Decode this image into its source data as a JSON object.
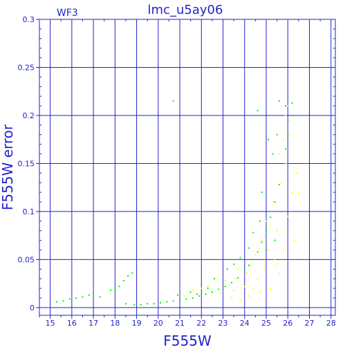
{
  "chart_data": {
    "type": "scatter",
    "title": "lmc_u5ay06",
    "corner_label": "WF3",
    "xlabel": "F555W",
    "ylabel": "F555W error",
    "xlim": [
      14.5,
      28.2
    ],
    "ylim": [
      -0.008,
      0.3
    ],
    "x_ticks": [
      15,
      16,
      17,
      18,
      19,
      20,
      21,
      22,
      23,
      24,
      25,
      26,
      27,
      28
    ],
    "x_tick_labels": [
      "15",
      "16",
      "17",
      "18",
      "19",
      "20",
      "21",
      "22",
      "23",
      "24",
      "25",
      "26",
      "27",
      "28"
    ],
    "y_ticks": [
      0,
      0.05,
      0.1,
      0.15,
      0.2,
      0.25,
      0.3
    ],
    "y_tick_labels": [
      "0",
      "0.05",
      "0.1",
      "0.15",
      "0.2",
      "0.25",
      "0.3"
    ],
    "grid": true,
    "series": [
      {
        "color": "#ffff00",
        "points": [
          [
            21.2,
            0.012
          ],
          [
            21.6,
            0.018
          ],
          [
            22.0,
            0.02
          ],
          [
            22.3,
            0.022
          ],
          [
            22.6,
            0.03
          ],
          [
            22.8,
            0.034
          ],
          [
            23.1,
            0.028
          ],
          [
            23.3,
            0.024
          ],
          [
            23.5,
            0.018
          ],
          [
            23.6,
            0.03
          ],
          [
            23.8,
            0.008
          ],
          [
            23.9,
            0.015
          ],
          [
            24.0,
            0.022
          ],
          [
            24.1,
            0.036
          ],
          [
            24.2,
            0.012
          ],
          [
            24.3,
            0.045
          ],
          [
            24.4,
            0.02
          ],
          [
            24.5,
            0.055
          ],
          [
            24.6,
            0.03
          ],
          [
            24.7,
            0.016
          ],
          [
            24.8,
            0.07
          ],
          [
            24.9,
            0.04
          ],
          [
            25.0,
            0.09
          ],
          [
            25.1,
            0.06
          ],
          [
            25.2,
            0.02
          ],
          [
            25.3,
            0.11
          ],
          [
            25.4,
            0.05
          ],
          [
            25.5,
            0.08
          ],
          [
            25.6,
            0.035
          ],
          [
            25.7,
            0.13
          ],
          [
            25.8,
            0.06
          ],
          [
            25.9,
            0.15
          ],
          [
            26.0,
            0.095
          ],
          [
            26.1,
            0.18
          ],
          [
            26.2,
            0.12
          ],
          [
            26.3,
            0.07
          ],
          [
            25.2,
            0.085
          ],
          [
            24.7,
            0.062
          ],
          [
            23.7,
            0.04
          ],
          [
            22.9,
            0.015
          ],
          [
            25.5,
            0.045
          ],
          [
            25.9,
            0.2
          ],
          [
            26.0,
            0.21
          ],
          [
            26.1,
            0.195
          ],
          [
            25.8,
            0.175
          ],
          [
            26.4,
            0.14
          ],
          [
            26.5,
            0.12
          ],
          [
            25.6,
            0.16
          ],
          [
            24.9,
            0.075
          ],
          [
            23.4,
            0.01
          ]
        ]
      },
      {
        "color": "#00ee00",
        "points": [
          [
            15.3,
            0.006
          ],
          [
            15.6,
            0.007
          ],
          [
            15.9,
            0.009
          ],
          [
            16.2,
            0.01
          ],
          [
            16.5,
            0.011
          ],
          [
            16.8,
            0.013
          ],
          [
            17.0,
            0.014
          ],
          [
            17.3,
            0.011
          ],
          [
            17.8,
            0.018
          ],
          [
            18.0,
            0.02
          ],
          [
            18.2,
            0.022
          ],
          [
            18.4,
            0.028
          ],
          [
            18.6,
            0.033
          ],
          [
            18.8,
            0.036
          ],
          [
            18.5,
            0.004
          ],
          [
            18.9,
            0.003
          ],
          [
            19.2,
            0.003
          ],
          [
            19.5,
            0.004
          ],
          [
            19.8,
            0.004
          ],
          [
            20.1,
            0.005
          ],
          [
            20.4,
            0.006
          ],
          [
            20.7,
            0.007
          ],
          [
            21.0,
            0.008
          ],
          [
            21.3,
            0.009
          ],
          [
            21.6,
            0.01
          ],
          [
            21.9,
            0.012
          ],
          [
            22.2,
            0.014
          ],
          [
            22.5,
            0.016
          ],
          [
            22.8,
            0.019
          ],
          [
            23.1,
            0.022
          ],
          [
            23.4,
            0.026
          ],
          [
            23.7,
            0.031
          ],
          [
            24.0,
            0.038
          ],
          [
            24.2,
            0.044
          ],
          [
            24.4,
            0.05
          ],
          [
            24.6,
            0.058
          ],
          [
            24.8,
            0.068
          ],
          [
            25.0,
            0.08
          ],
          [
            25.2,
            0.094
          ],
          [
            25.4,
            0.11
          ],
          [
            25.6,
            0.128
          ],
          [
            25.8,
            0.15
          ],
          [
            25.9,
            0.165
          ],
          [
            26.0,
            0.18
          ],
          [
            26.1,
            0.2
          ],
          [
            26.2,
            0.213
          ],
          [
            20.7,
            0.215
          ],
          [
            24.6,
            0.205
          ],
          [
            25.1,
            0.175
          ],
          [
            25.3,
            0.16
          ],
          [
            25.6,
            0.215
          ],
          [
            25.5,
            0.18
          ],
          [
            24.8,
            0.12
          ],
          [
            24.4,
            0.078
          ],
          [
            23.8,
            0.052
          ],
          [
            23.2,
            0.04
          ],
          [
            22.6,
            0.03
          ],
          [
            22.0,
            0.024
          ],
          [
            21.5,
            0.016
          ],
          [
            20.9,
            0.013
          ],
          [
            25.7,
            0.1
          ],
          [
            25.4,
            0.07
          ],
          [
            24.2,
            0.062
          ],
          [
            26.0,
            0.15
          ],
          [
            25.9,
            0.21
          ],
          [
            25.0,
            0.06
          ],
          [
            24.7,
            0.09
          ],
          [
            23.5,
            0.045
          ],
          [
            22.3,
            0.02
          ],
          [
            21.8,
            0.014
          ]
        ]
      }
    ]
  }
}
